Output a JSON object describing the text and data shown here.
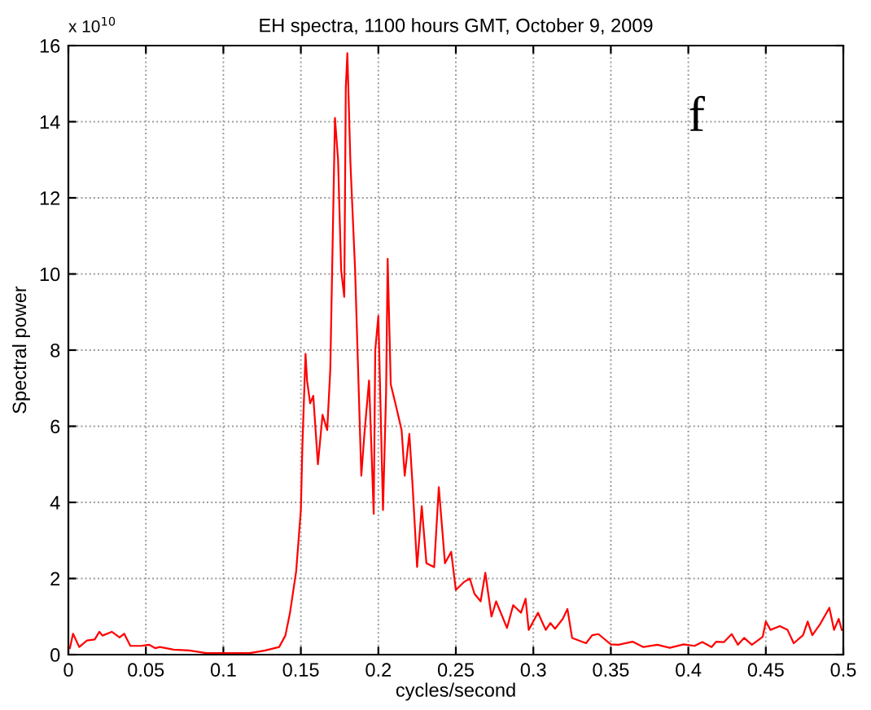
{
  "chart_data": {
    "type": "line",
    "title": "EH spectra, 1100 hours GMT, October 9, 2009",
    "xlabel": "cycles/second",
    "ylabel": "Spectral power",
    "annotations": [
      "x 10$^{10}$",
      "f"
    ],
    "x": [
      0.001,
      0.003,
      0.007,
      0.012,
      0.017,
      0.02,
      0.022,
      0.028,
      0.033,
      0.036,
      0.04,
      0.047,
      0.052,
      0.056,
      0.059,
      0.068,
      0.078,
      0.089,
      0.103,
      0.117,
      0.127,
      0.136,
      0.14,
      0.143,
      0.147,
      0.15,
      0.151,
      0.153,
      0.154,
      0.156,
      0.158,
      0.161,
      0.164,
      0.167,
      0.169,
      0.172,
      0.174,
      0.176,
      0.178,
      0.179,
      0.18,
      0.182,
      0.185,
      0.187,
      0.189,
      0.191,
      0.194,
      0.197,
      0.198,
      0.2,
      0.201,
      0.203,
      0.205,
      0.206,
      0.208,
      0.211,
      0.215,
      0.217,
      0.22,
      0.222,
      0.225,
      0.228,
      0.231,
      0.236,
      0.239,
      0.243,
      0.247,
      0.25,
      0.255,
      0.259,
      0.262,
      0.266,
      0.269,
      0.273,
      0.276,
      0.283,
      0.287,
      0.292,
      0.295,
      0.297,
      0.303,
      0.308,
      0.311,
      0.314,
      0.319,
      0.322,
      0.325,
      0.334,
      0.338,
      0.342,
      0.35,
      0.355,
      0.364,
      0.371,
      0.38,
      0.388,
      0.397,
      0.404,
      0.409,
      0.415,
      0.418,
      0.423,
      0.428,
      0.432,
      0.436,
      0.441,
      0.448,
      0.45,
      0.453,
      0.459,
      0.464,
      0.468,
      0.474,
      0.477,
      0.48,
      0.485,
      0.491,
      0.494,
      0.497,
      0.499
    ],
    "series": [
      {
        "color": "#ff0000",
        "values": [
          0.17,
          0.55,
          0.2,
          0.37,
          0.4,
          0.6,
          0.5,
          0.6,
          0.45,
          0.55,
          0.23,
          0.23,
          0.26,
          0.17,
          0.2,
          0.13,
          0.11,
          0.04,
          0.04,
          0.04,
          0.11,
          0.2,
          0.5,
          1.1,
          2.2,
          3.8,
          5.5,
          7.9,
          7.2,
          6.6,
          6.8,
          5.0,
          6.3,
          5.9,
          7.5,
          14.1,
          13.0,
          10.1,
          9.4,
          14.9,
          15.8,
          12.9,
          10.1,
          7.4,
          4.7,
          5.8,
          7.2,
          3.7,
          8.0,
          8.9,
          7.2,
          3.8,
          6.9,
          10.4,
          7.1,
          6.6,
          5.9,
          4.7,
          5.8,
          4.5,
          2.3,
          3.9,
          2.4,
          2.3,
          4.4,
          2.4,
          2.7,
          1.7,
          1.9,
          2.0,
          1.6,
          1.4,
          2.15,
          1.0,
          1.4,
          0.7,
          1.3,
          1.1,
          1.47,
          0.65,
          1.1,
          0.65,
          0.83,
          0.68,
          0.94,
          1.2,
          0.44,
          0.3,
          0.51,
          0.54,
          0.27,
          0.26,
          0.34,
          0.2,
          0.26,
          0.18,
          0.27,
          0.23,
          0.33,
          0.2,
          0.34,
          0.33,
          0.54,
          0.26,
          0.44,
          0.26,
          0.47,
          0.87,
          0.65,
          0.75,
          0.65,
          0.3,
          0.51,
          0.87,
          0.51,
          0.8,
          1.23,
          0.65,
          0.94,
          0.65
        ]
      }
    ],
    "xlim": [
      0,
      0.5
    ],
    "xticks": [
      0,
      0.05,
      0.1,
      0.15,
      0.2,
      0.25,
      0.3,
      0.35,
      0.4,
      0.45,
      0.5
    ],
    "ylim": [
      0,
      16
    ],
    "yticks": [
      0,
      2,
      4,
      6,
      8,
      10,
      12,
      14,
      16
    ],
    "grid": true,
    "marker": "none",
    "line_style": "solid",
    "legend": false
  }
}
